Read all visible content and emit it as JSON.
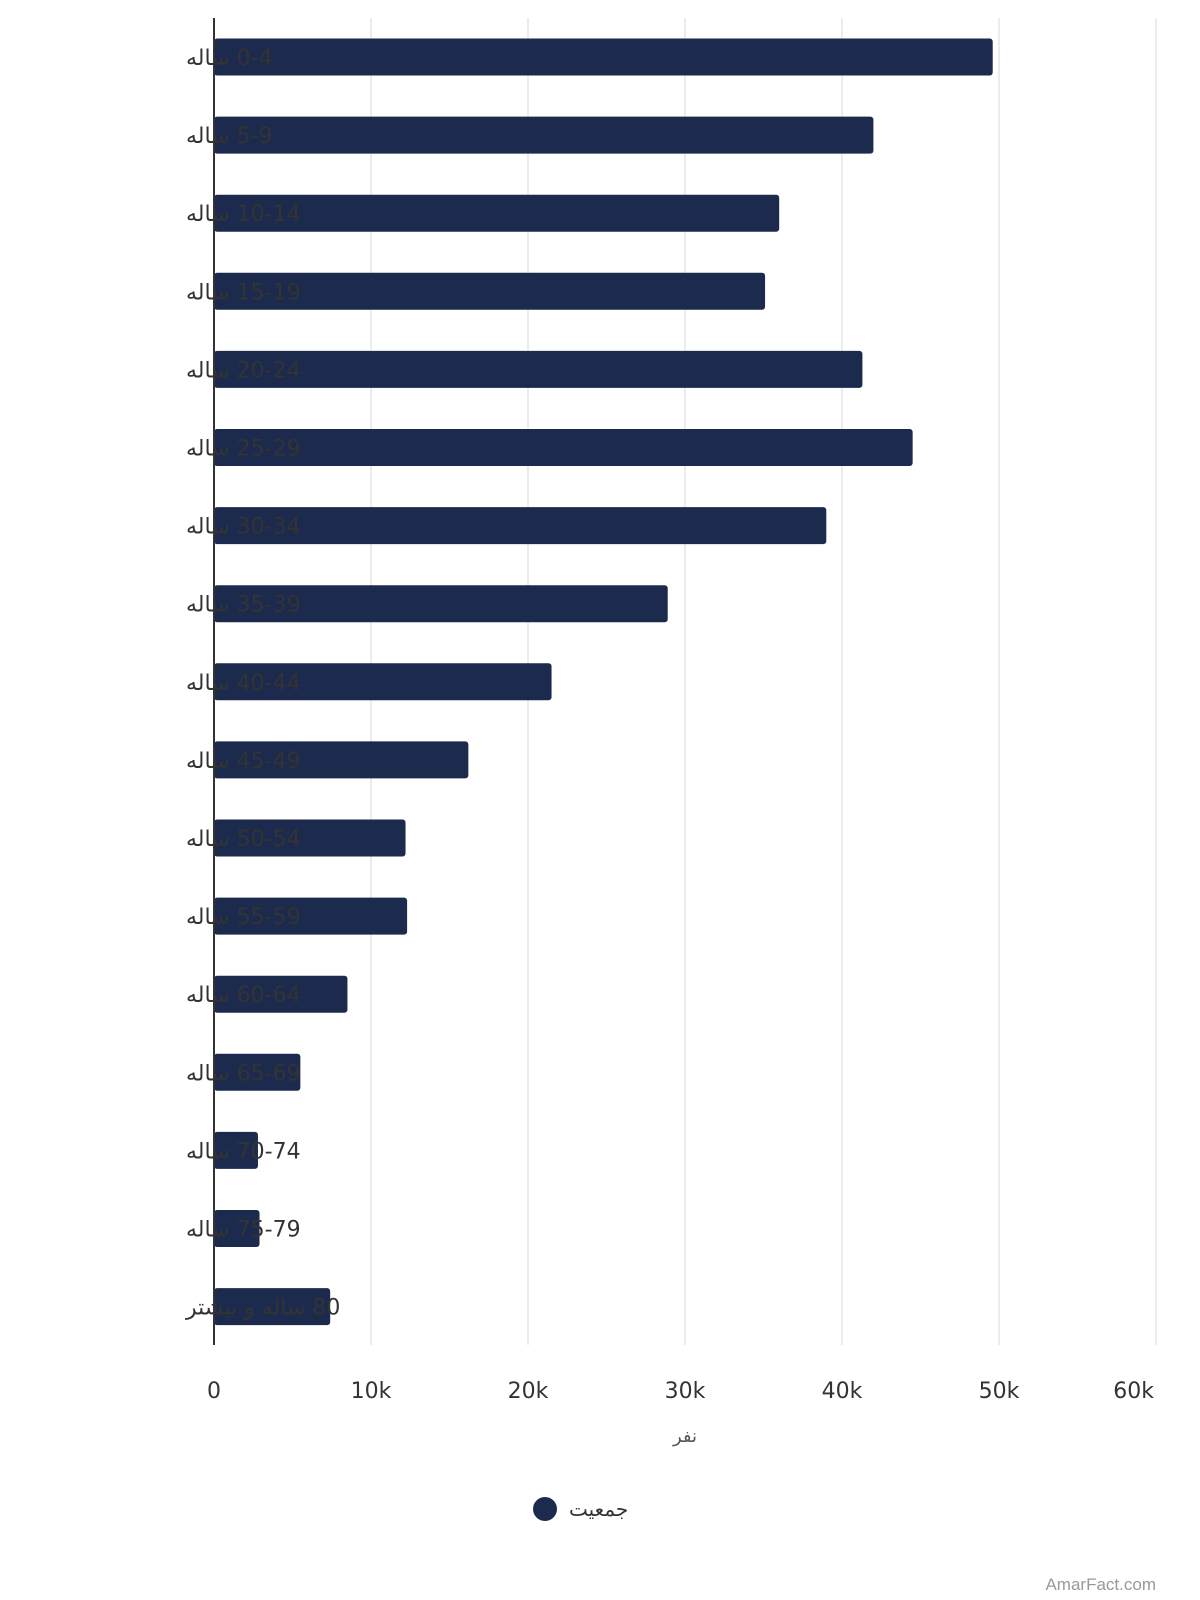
{
  "chart_data": {
    "type": "bar",
    "orientation": "horizontal",
    "categories": [
      "0-4 ساله",
      "5-9 ساله",
      "10-14 ساله",
      "15-19 ساله",
      "20-24 ساله",
      "25-29 ساله",
      "30-34 ساله",
      "35-39 ساله",
      "40-44 ساله",
      "45-49 ساله",
      "50-54 ساله",
      "55-59 ساله",
      "60-64 ساله",
      "65-69 ساله",
      "70-74 ساله",
      "75-79 ساله",
      "80 ساله و بیشتر"
    ],
    "series": [
      {
        "name": "جمعیت",
        "color": "#1c2a4d",
        "values": [
          49600,
          42000,
          36000,
          35100,
          41300,
          44500,
          39000,
          28900,
          21500,
          16200,
          12200,
          12300,
          8500,
          5500,
          2800,
          2900,
          7400
        ]
      }
    ],
    "xlabel": "نفر",
    "xlim": [
      0,
      60000
    ],
    "xticks": [
      {
        "value": 0,
        "label": "0"
      },
      {
        "value": 10000,
        "label": "10k"
      },
      {
        "value": 20000,
        "label": "20k"
      },
      {
        "value": 30000,
        "label": "30k"
      },
      {
        "value": 40000,
        "label": "40k"
      },
      {
        "value": 50000,
        "label": "50k"
      },
      {
        "value": 60000,
        "label": "60k"
      }
    ],
    "grid": true,
    "legend_position": "bottom-center"
  },
  "watermark": "AmarFact.com",
  "colors": {
    "bar": "#1c2a4d",
    "grid": "#e6e6e6",
    "axis": "#333333"
  }
}
